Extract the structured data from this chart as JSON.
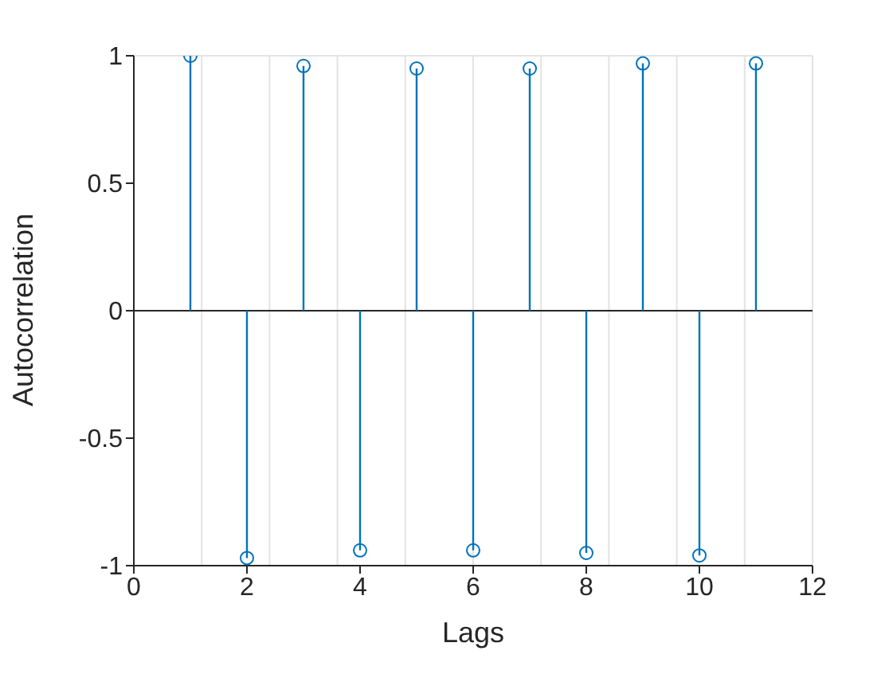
{
  "chart_data": {
    "type": "lollipop",
    "xlabel": "Lags",
    "ylabel": "Autocorrelation",
    "x": [
      1,
      2,
      3,
      4,
      5,
      6,
      7,
      8,
      9,
      10,
      11
    ],
    "values": [
      1.0,
      -0.97,
      0.96,
      -0.94,
      0.95,
      -0.94,
      0.95,
      -0.95,
      0.97,
      -0.96,
      0.97
    ],
    "color": "#0072bd",
    "marker": "circle",
    "grid": true,
    "xlim": [
      0,
      12
    ],
    "xticks": [
      0,
      2,
      4,
      6,
      8,
      10,
      12
    ],
    "ylim": [
      -1,
      1
    ],
    "yticks": [
      -1,
      -0.5,
      0,
      0.5,
      1
    ]
  }
}
